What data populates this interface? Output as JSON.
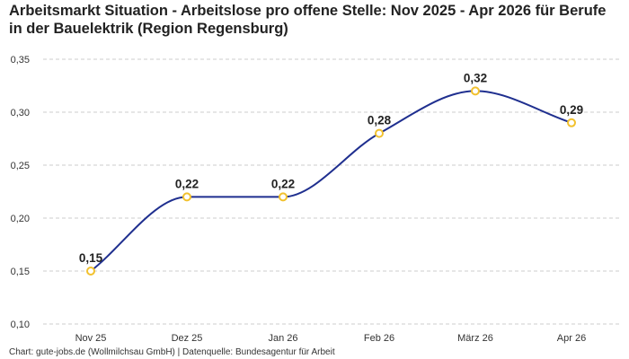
{
  "chart_data": {
    "type": "line",
    "title": "Arbeitsmarkt Situation - Arbeitslose pro offene Stelle: Nov 2025 - Apr 2026 für Berufe in der Bauelektrik (Region Regensburg)",
    "xlabel": "",
    "ylabel": "",
    "categories": [
      "Nov 25",
      "Dez 25",
      "Jan 26",
      "Feb 26",
      "März 26",
      "Apr 26"
    ],
    "values": [
      0.15,
      0.22,
      0.22,
      0.28,
      0.32,
      0.29
    ],
    "data_labels": [
      "0,15",
      "0,22",
      "0,22",
      "0,28",
      "0,32",
      "0,29"
    ],
    "ylim": [
      0.1,
      0.35
    ],
    "yticks": [
      0.1,
      0.15,
      0.2,
      0.25,
      0.3,
      0.35
    ],
    "ytick_labels": [
      "0,10",
      "0,15",
      "0,20",
      "0,25",
      "0,30",
      "0,35"
    ],
    "grid": true,
    "legend": "none",
    "colors": {
      "line": "#1f2f8f",
      "marker": "#f2c12e",
      "grid": "#cccccc"
    }
  },
  "footer": "Chart: gute-jobs.de (Wollmilchsau GmbH) | Datenquelle: Bundesagentur für Arbeit"
}
